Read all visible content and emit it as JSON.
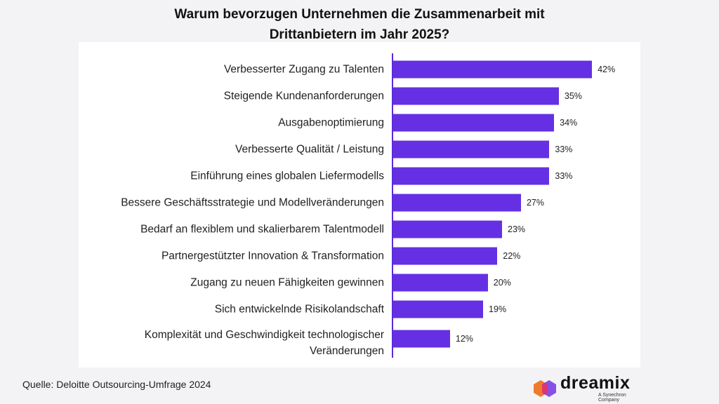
{
  "chart_data": {
    "type": "bar",
    "orientation": "horizontal",
    "title": "Warum bevorzugen Unternehmen die Zusammenarbeit mit Drittanbietern im Jahr 2025?",
    "categories": [
      "Verbesserter Zugang zu Talenten",
      "Steigende Kundenanforderungen",
      "Ausgabenoptimierung",
      "Verbesserte Qualität / Leistung",
      "Einführung eines globalen Liefermodells",
      "Bessere Geschäftsstrategie und Modellveränderungen",
      "Bedarf an flexiblem und skalierbarem Talentmodell",
      "Partnergestützter Innovation & Transformation",
      "Zugang zu neuen Fähigkeiten gewinnen",
      "Sich entwickelnde Risikolandschaft",
      "Komplexität und Geschwindigkeit technologischer Veränderungen"
    ],
    "values": [
      42,
      35,
      34,
      33,
      33,
      27,
      23,
      22,
      20,
      19,
      12
    ],
    "value_labels": [
      "42%",
      "35%",
      "34%",
      "33%",
      "33%",
      "27%",
      "23%",
      "22%",
      "20%",
      "19%",
      "12%"
    ],
    "color": "#6530e3"
  },
  "source": "Quelle: Deloitte Outsourcing-Umfrage 2024",
  "logo": {
    "name": "dreamix",
    "tagline": "A Synechron Company"
  }
}
